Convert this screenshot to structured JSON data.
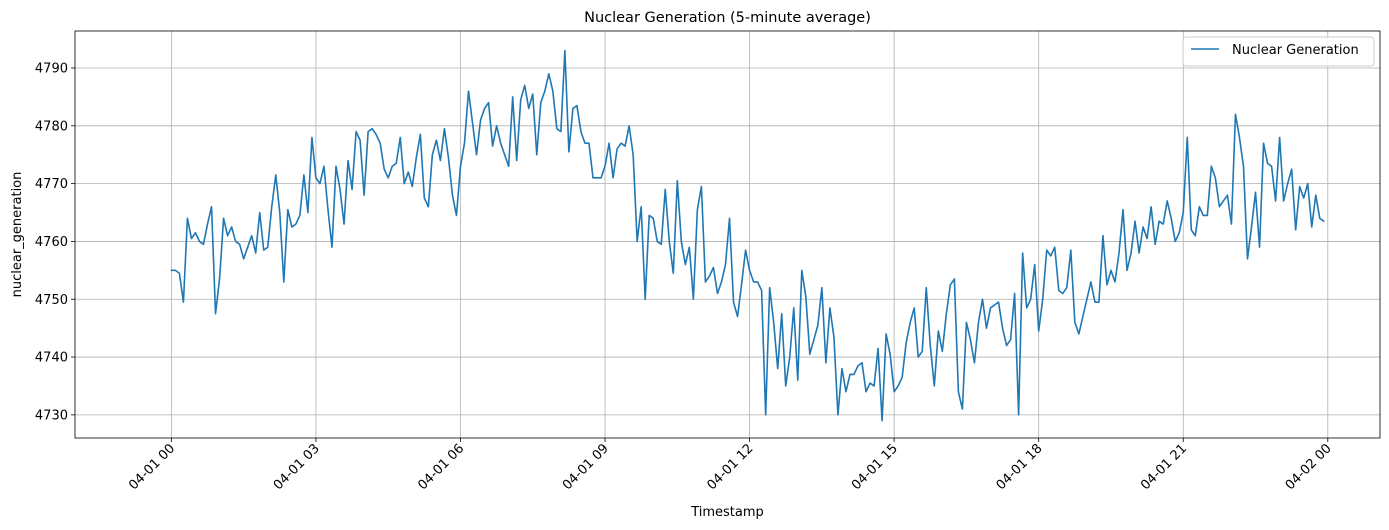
{
  "chart_data": {
    "type": "line",
    "title": "Nuclear Generation (5-minute average)",
    "xlabel": "Timestamp",
    "ylabel": "nuclear_generation",
    "x_start": "2024-04-01 00:00",
    "x_step_minutes": 5,
    "xlim": [
      "2024-03-31 22:00",
      "2024-04-02 01:05"
    ],
    "ylim": [
      4726,
      4796.4
    ],
    "x_ticks": [
      {
        "hour": 0,
        "label": "04-01 00"
      },
      {
        "hour": 3,
        "label": "04-01 03"
      },
      {
        "hour": 6,
        "label": "04-01 06"
      },
      {
        "hour": 9,
        "label": "04-01 09"
      },
      {
        "hour": 12,
        "label": "04-01 12"
      },
      {
        "hour": 15,
        "label": "04-01 15"
      },
      {
        "hour": 18,
        "label": "04-01 18"
      },
      {
        "hour": 21,
        "label": "04-01 21"
      },
      {
        "hour": 24,
        "label": "04-02 00"
      }
    ],
    "y_ticks": [
      4730,
      4740,
      4750,
      4760,
      4770,
      4780,
      4790
    ],
    "grid": true,
    "legend": "top-right",
    "series": [
      {
        "name": "Nuclear Generation",
        "color": "#1f77b4",
        "values": [
          4755,
          4755,
          4754.5,
          4749.5,
          4764,
          4760.5,
          4761.5,
          4760,
          4759.5,
          4763,
          4766,
          4747.5,
          4753.5,
          4764,
          4761,
          4762.5,
          4760,
          4759.5,
          4757,
          4759,
          4761,
          4758,
          4765,
          4758.5,
          4759,
          4766,
          4771.5,
          4765,
          4753,
          4765.5,
          4762.5,
          4763,
          4764.5,
          4771.5,
          4765,
          4778,
          4771,
          4770,
          4773,
          4765.5,
          4759,
          4773,
          4769,
          4763,
          4774,
          4769,
          4779,
          4777.5,
          4768,
          4779,
          4779.5,
          4778.5,
          4777,
          4772.5,
          4771,
          4773,
          4773.5,
          4778,
          4770,
          4772,
          4769.5,
          4774.5,
          4778.5,
          4767.5,
          4766,
          4775,
          4777.5,
          4774,
          4779.5,
          4774.5,
          4768,
          4764.5,
          4773,
          4777,
          4786,
          4780.5,
          4775,
          4781,
          4783,
          4784,
          4776.5,
          4780,
          4777,
          4775,
          4773,
          4785,
          4774,
          4784.5,
          4787,
          4783,
          4785.5,
          4775,
          4784,
          4786,
          4789,
          4786,
          4779.5,
          4779,
          4793,
          4775.5,
          4783,
          4783.5,
          4779,
          4777,
          4777,
          4771,
          4771,
          4771,
          4773,
          4777,
          4771,
          4776,
          4777,
          4776.5,
          4780,
          4775,
          4760,
          4766,
          4750,
          4764.5,
          4764,
          4760,
          4759.5,
          4769,
          4760,
          4754.5,
          4770.5,
          4760,
          4756,
          4759,
          4750,
          4765.5,
          4769.5,
          4753,
          4754,
          4755.5,
          4751,
          4753,
          4756,
          4764,
          4749.5,
          4747,
          4752.5,
          4758.5,
          4755,
          4753,
          4753,
          4751.5,
          4730,
          4752,
          4746,
          4738,
          4747.5,
          4735,
          4740,
          4748.5,
          4736,
          4755,
          4750.5,
          4740.5,
          4743,
          4745.5,
          4752,
          4739,
          4748.5,
          4743.5,
          4730,
          4738,
          4734,
          4737,
          4737,
          4738.5,
          4739,
          4734,
          4735.5,
          4735,
          4741.5,
          4729,
          4744,
          4740.5,
          4734,
          4735,
          4736.5,
          4742.5,
          4746,
          4748.5,
          4740,
          4741,
          4752,
          4742,
          4735,
          4744.5,
          4741,
          4747.5,
          4752.5,
          4753.5,
          4734,
          4731,
          4746,
          4743,
          4739,
          4746,
          4750,
          4745,
          4748.5,
          4749,
          4749.5,
          4745,
          4742,
          4743,
          4751,
          4730,
          4758,
          4748.5,
          4750,
          4756,
          4744.5,
          4750,
          4758.5,
          4757.5,
          4759,
          4751.5,
          4751,
          4752,
          4758.5,
          4746,
          4744,
          4747,
          4750,
          4753,
          4749.5,
          4749.5,
          4761,
          4752.5,
          4755,
          4753,
          4758,
          4765.5,
          4755,
          4758,
          4763.5,
          4758,
          4762.5,
          4760.5,
          4766,
          4759.5,
          4763.5,
          4763,
          4767,
          4764,
          4760,
          4761.5,
          4765,
          4778,
          4762,
          4761,
          4766,
          4764.5,
          4764.5,
          4773,
          4771,
          4766,
          4767,
          4768,
          4763,
          4782,
          4778,
          4773,
          4757,
          4762.5,
          4768.5,
          4759,
          4777,
          4773.5,
          4773,
          4767,
          4778,
          4767,
          4770,
          4772.5,
          4762,
          4769.5,
          4767.5,
          4770,
          4762.5,
          4768,
          4764,
          4763.5
        ]
      }
    ]
  }
}
